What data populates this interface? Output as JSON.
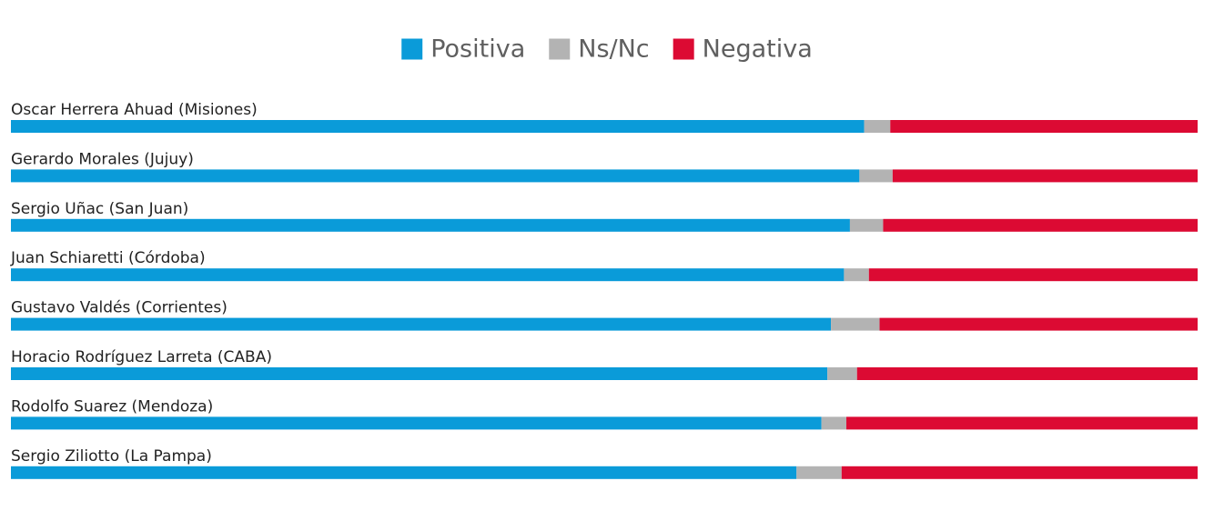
{
  "chart_data": {
    "type": "bar",
    "stacked": true,
    "orientation": "horizontal",
    "normalized_percent": true,
    "legend_position": "top-center",
    "categories": [
      "Oscar Herrera Ahuad (Misiones)",
      "Gerardo Morales (Jujuy)",
      "Sergio Uñac (San Juan)",
      "Juan Schiaretti (Córdoba)",
      "Gustavo Valdés (Corrientes)",
      "Horacio Rodríguez Larreta (CABA)",
      "Rodolfo Suarez (Mendoza)",
      "Sergio Ziliotto (La Pampa)"
    ],
    "series": [
      {
        "name": "Positiva",
        "color": "#0a9bd9",
        "values": [
          71.9,
          71.5,
          70.7,
          70.2,
          69.1,
          68.8,
          68.3,
          66.2
        ]
      },
      {
        "name": "Ns/Nc",
        "color": "#b3b3b3",
        "values": [
          2.2,
          2.8,
          2.8,
          2.1,
          4.1,
          2.5,
          2.1,
          3.8
        ]
      },
      {
        "name": "Negativa",
        "color": "#dc0a33",
        "values": [
          25.9,
          25.7,
          26.5,
          27.7,
          26.8,
          28.7,
          29.6,
          30.0
        ]
      }
    ],
    "title": "",
    "xlabel": "",
    "ylabel": "",
    "xlim": [
      0,
      100
    ],
    "grid": false
  }
}
